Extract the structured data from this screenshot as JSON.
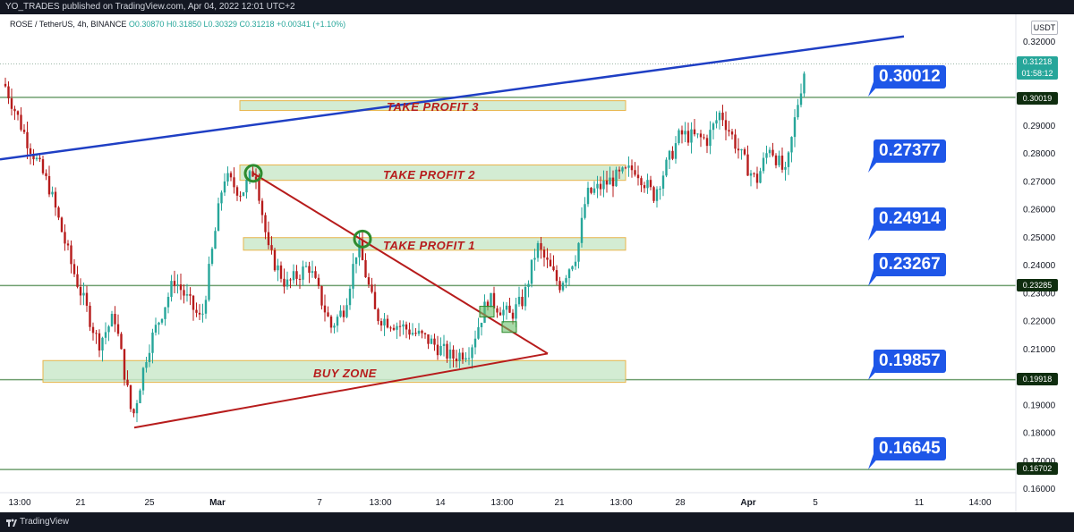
{
  "header": {
    "publish_line": "YO_TRADES published on TradingView.com, Apr 04, 2022 12:01 UTC+2"
  },
  "legend": {
    "symbol": "ROSE / TetherUS, 4h, BINANCE",
    "ohlc": "O0.30870 H0.31850 L0.30329 C0.31218 +0.00341 (+1.10%)"
  },
  "axis": {
    "currency": "USDT"
  },
  "footer": {
    "brand": "TradingView"
  },
  "colors": {
    "up": "#26a69a",
    "down": "#b71c1c",
    "trend": "#1f3fc4",
    "triangle": "#b71c1c",
    "zone_fill": "#cbe9cb",
    "zone_border": "#e8b44a",
    "level_line": "#6f9f6f",
    "callout": "#1e56e8"
  },
  "zones": [
    {
      "label": "TAKE PROFIT 3",
      "from": 0.2955,
      "to": 0.299
    },
    {
      "label": "TAKE PROFIT 2",
      "from": 0.2705,
      "to": 0.276
    },
    {
      "label": "TAKE PROFIT 1",
      "from": 0.2455,
      "to": 0.25
    },
    {
      "label": "BUY ZONE",
      "from": 0.1982,
      "to": 0.206
    }
  ],
  "callouts": [
    "0.30012",
    "0.27377",
    "0.24914",
    "0.23267",
    "0.19857",
    "0.16645"
  ],
  "price_labels": {
    "current_price": "0.31218",
    "countdown": "01:58:12",
    "levels": [
      "0.30019",
      "0.23285",
      "0.19918",
      "0.16702"
    ]
  },
  "chart_data": {
    "type": "candlestick",
    "yaxis_ticks": [
      "0.32000",
      "0.29000",
      "0.28000",
      "0.27000",
      "0.26000",
      "0.25000",
      "0.24000",
      "0.23000",
      "0.22000",
      "0.21000",
      "0.19000",
      "0.18000",
      "0.17000",
      "0.16000"
    ],
    "ylim": [
      0.1595,
      0.3235
    ],
    "xaxis_ticks": [
      "13:00",
      "21",
      "25",
      "Mar",
      "7",
      "13:00",
      "14",
      "13:00",
      "21",
      "13:00",
      "28",
      "Apr",
      "5",
      "11",
      "14:00"
    ],
    "horizontal_levels": [
      0.30019,
      0.23285,
      0.19918,
      0.16702
    ],
    "trend_line": {
      "from": [
        0,
        0.278
      ],
      "to": [
        1010,
        0.322
      ]
    },
    "triangle": {
      "apex_top": [
        283,
        0.273
      ],
      "apex_right": [
        612,
        0.2085
      ],
      "apex_bottom": [
        150,
        0.182
      ]
    },
    "circles": [
      [
        283,
        0.273
      ],
      [
        405,
        0.2495
      ]
    ],
    "boxes": [
      [
        544,
        0.2235
      ],
      [
        569,
        0.218
      ]
    ],
    "price_path": [
      [
        5,
        0.305
      ],
      [
        30,
        0.285
      ],
      [
        55,
        0.268
      ],
      [
        80,
        0.24
      ],
      [
        110,
        0.212
      ],
      [
        128,
        0.222
      ],
      [
        148,
        0.185
      ],
      [
        165,
        0.21
      ],
      [
        195,
        0.235
      ],
      [
        225,
        0.22
      ],
      [
        250,
        0.272
      ],
      [
        270,
        0.266
      ],
      [
        285,
        0.275
      ],
      [
        300,
        0.245
      ],
      [
        320,
        0.233
      ],
      [
        345,
        0.24
      ],
      [
        370,
        0.218
      ],
      [
        385,
        0.225
      ],
      [
        400,
        0.248
      ],
      [
        420,
        0.222
      ],
      [
        450,
        0.218
      ],
      [
        480,
        0.213
      ],
      [
        505,
        0.207
      ],
      [
        525,
        0.21
      ],
      [
        545,
        0.228
      ],
      [
        570,
        0.222
      ],
      [
        585,
        0.228
      ],
      [
        600,
        0.247
      ],
      [
        625,
        0.233
      ],
      [
        645,
        0.245
      ],
      [
        655,
        0.265
      ],
      [
        680,
        0.27
      ],
      [
        710,
        0.275
      ],
      [
        730,
        0.265
      ],
      [
        760,
        0.287
      ],
      [
        790,
        0.285
      ],
      [
        805,
        0.295
      ],
      [
        830,
        0.278
      ],
      [
        845,
        0.27
      ],
      [
        860,
        0.283
      ],
      [
        878,
        0.272
      ],
      [
        890,
        0.296
      ],
      [
        900,
        0.312
      ]
    ]
  }
}
